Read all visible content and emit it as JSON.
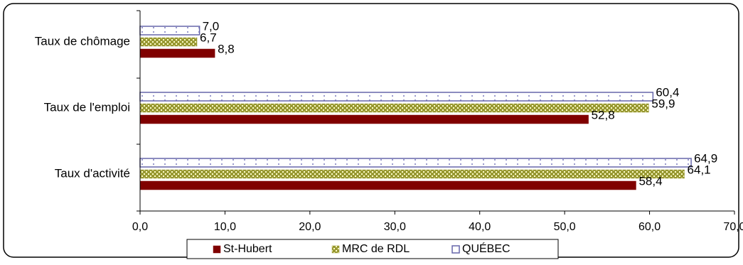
{
  "chart_data": {
    "type": "bar",
    "orientation": "horizontal",
    "categories": [
      "Taux de chômage",
      "Taux de l'emploi",
      "Taux d'activité"
    ],
    "series": [
      {
        "name": "QUÉBEC",
        "values": [
          7.0,
          60.4,
          64.9
        ],
        "labels": [
          "7,0",
          "60,4",
          "64,9"
        ]
      },
      {
        "name": "MRC de RDL",
        "values": [
          6.7,
          59.9,
          64.1
        ],
        "labels": [
          "6,7",
          "59,9",
          "64,1"
        ]
      },
      {
        "name": "St-Hubert",
        "values": [
          8.8,
          52.8,
          58.4
        ],
        "labels": [
          "8,8",
          "52,8",
          "58,4"
        ]
      }
    ],
    "legend_order": [
      "St-Hubert",
      "MRC de RDL",
      "QUÉBEC"
    ],
    "xlim": [
      0,
      70
    ],
    "xticks": [
      "0,0",
      "10,0",
      "20,0",
      "30,0",
      "40,0",
      "50,0",
      "60,0",
      "70,0"
    ],
    "grid": false,
    "legend_position": "bottom",
    "title": "",
    "xlabel": "",
    "ylabel": ""
  },
  "colors": {
    "st_hubert": "#800000",
    "mrc_fill_a": "#ffffcc",
    "mrc_fill_b": "#999933",
    "quebec_border": "#6666aa",
    "quebec_dots": "#9999cc",
    "frame": "#000000"
  }
}
